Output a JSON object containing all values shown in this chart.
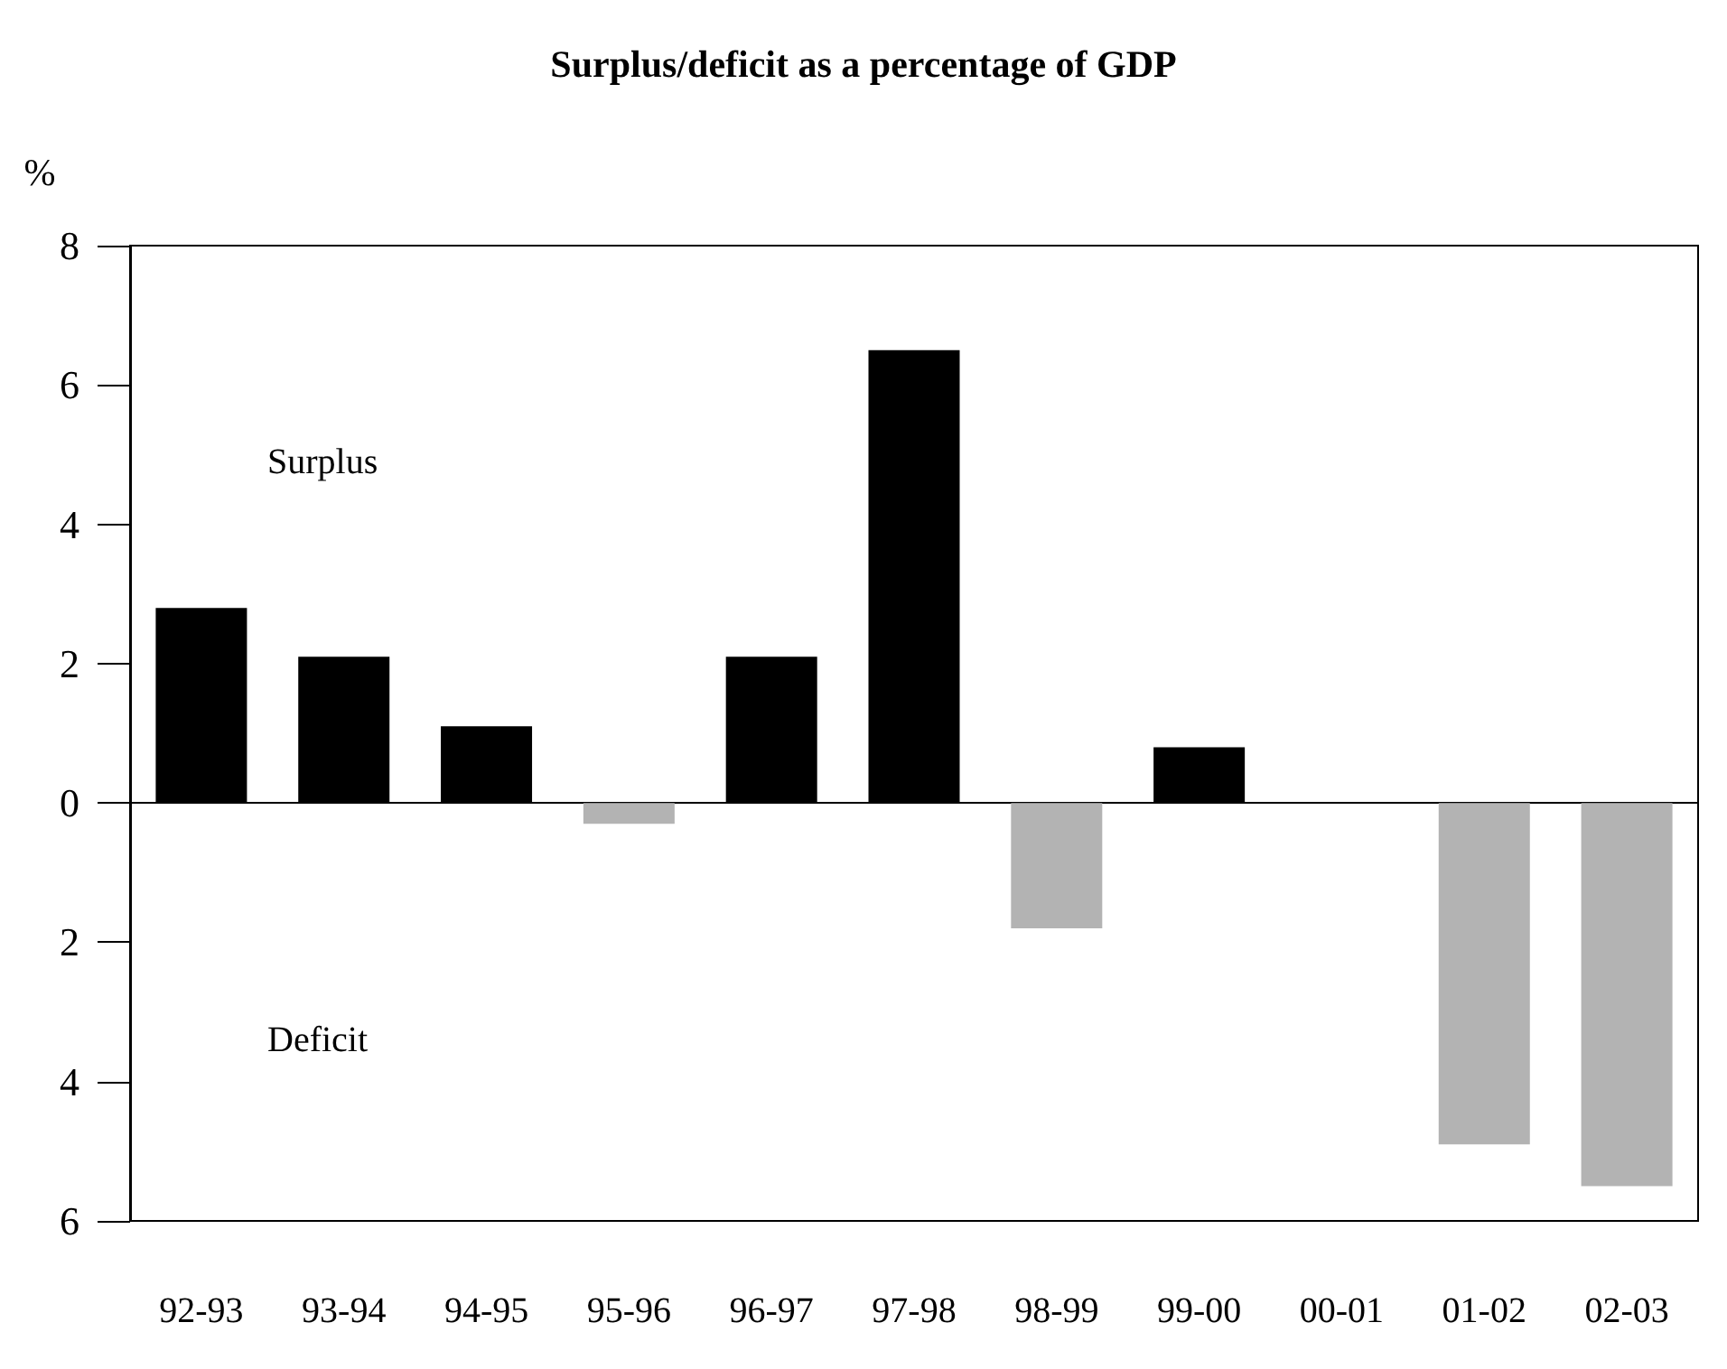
{
  "chart_data": {
    "type": "bar",
    "title": "Surplus/deficit as a percentage of GDP",
    "ylabel": "%",
    "categories": [
      "92-93",
      "93-94",
      "94-95",
      "95-96",
      "96-97",
      "97-98",
      "98-99",
      "99-00",
      "00-01",
      "01-02",
      "02-03"
    ],
    "values": [
      2.8,
      2.1,
      1.1,
      -0.3,
      2.1,
      6.5,
      -1.8,
      0.8,
      0,
      -4.9,
      -5.5
    ],
    "colors": [
      "#000000",
      "#000000",
      "#000000",
      "#b3b3b3",
      "#000000",
      "#000000",
      "#b3b3b3",
      "#000000",
      "#b3b3b3",
      "#b3b3b3",
      "#b3b3b3"
    ],
    "ylim": [
      -6,
      8
    ],
    "yticks": [
      {
        "value": -6,
        "label": "6"
      },
      {
        "value": -4,
        "label": "4"
      },
      {
        "value": -2,
        "label": "2"
      },
      0,
      2,
      4,
      6,
      8
    ],
    "annotations": [
      "Surplus",
      "Deficit"
    ]
  }
}
